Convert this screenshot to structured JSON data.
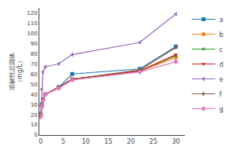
{
  "chart_data": {
    "type": "line",
    "y_label": "溶解性总固体\n（mg/L）",
    "x": [
      0,
      0.25,
      0.5,
      1,
      4,
      7,
      22,
      30
    ],
    "series": [
      {
        "name": "a",
        "marker": "square",
        "values": [
          21,
          30,
          35,
          40,
          47,
          60,
          65,
          87
        ]
      },
      {
        "name": "b",
        "marker": "circle",
        "values": [
          20,
          28,
          34,
          40,
          46,
          55,
          63,
          76
        ]
      },
      {
        "name": "c",
        "marker": "triangle-up",
        "values": [
          19,
          28,
          35,
          40,
          47,
          55,
          63,
          78
        ]
      },
      {
        "name": "d",
        "marker": "triangle-down",
        "values": [
          19,
          28,
          35,
          40,
          47,
          55,
          63,
          79
        ]
      },
      {
        "name": "e",
        "marker": "triangle-left",
        "values": [
          18,
          45,
          62,
          67,
          70,
          79,
          91,
          119
        ]
      },
      {
        "name": "f",
        "marker": "triangle-right",
        "values": [
          19,
          28,
          35,
          40,
          47,
          55,
          64,
          86
        ]
      },
      {
        "name": "g",
        "marker": "diamond",
        "values": [
          18,
          28,
          34,
          40,
          46,
          54,
          62,
          72
        ]
      }
    ],
    "xlim": [
      -0.3,
      32
    ],
    "xticks": [
      0,
      5,
      10,
      15,
      20,
      25,
      30
    ],
    "ylim": [
      0,
      125
    ],
    "yticks": [
      0,
      10,
      20,
      30,
      40,
      50,
      60,
      70,
      80,
      90,
      100,
      110,
      120
    ],
    "grid": false,
    "legend": "right"
  }
}
